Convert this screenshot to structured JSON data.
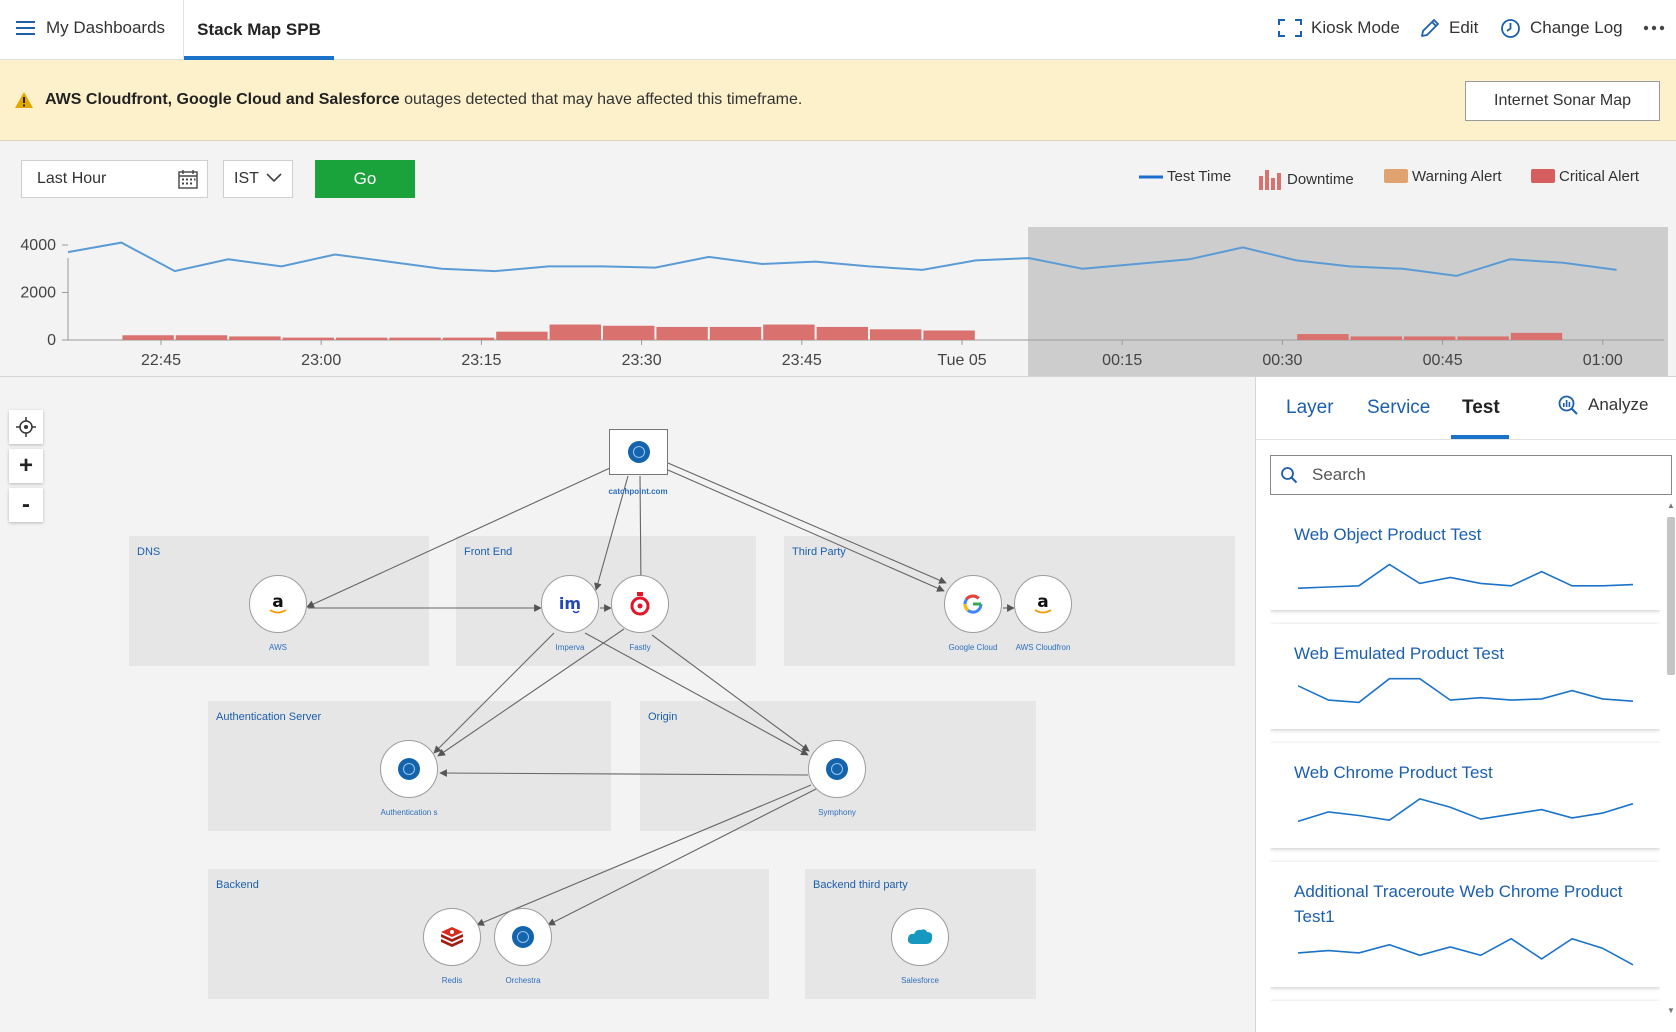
{
  "topbar": {
    "menu_label": "My Dashboards",
    "active_tab": "Stack Map SPB",
    "kiosk_label": "Kiosk Mode",
    "edit_label": "Edit",
    "changelog_label": "Change Log",
    "more_icon": "more-horizontal-icon"
  },
  "banner": {
    "bold_text": "AWS Cloudfront, Google Cloud and Salesforce",
    "text": " outages detected that may have affected this timeframe.",
    "button_label": "Internet Sonar Map",
    "icon": "warning-icon"
  },
  "controls": {
    "time_range": "Last Hour",
    "timezone": "IST",
    "go_label": "Go"
  },
  "legend": {
    "test_time": "Test Time",
    "downtime": "Downtime",
    "warning": "Warning Alert",
    "critical": "Critical Alert",
    "colors": {
      "test_time": "#1b6ed1",
      "downtime": "#d9726f",
      "warning": "#e0a36f",
      "critical": "#d65e5e"
    }
  },
  "chart_data": {
    "type": "line",
    "series": [
      {
        "values": [
          3700,
          4100,
          2900,
          3400,
          3100,
          3600,
          3300,
          3000,
          2900,
          3100,
          3100,
          3050,
          3500,
          3200,
          3300,
          3100,
          2950,
          3350,
          3450,
          3000,
          3200,
          3400,
          3900,
          3350,
          3100,
          3000,
          2700,
          3400,
          3250,
          2950
        ]
      },
      {
        "values": [
          0,
          200,
          200,
          150,
          100,
          100,
          100,
          100,
          350,
          650,
          600,
          550,
          550,
          650,
          550,
          450,
          400,
          0,
          0,
          0,
          0,
          0,
          0,
          250,
          150,
          150,
          150,
          300,
          0,
          0
        ]
      }
    ],
    "ylim": [
      0,
      4800
    ],
    "yticks": [
      "4000",
      "2000",
      "0"
    ],
    "xticks": [
      "22:45",
      "23:00",
      "23:15",
      "23:30",
      "23:45",
      "Tue 05",
      "00:15",
      "00:30",
      "00:45",
      "01:00"
    ],
    "selection": "00:00-01:00"
  },
  "map": {
    "root": {
      "label": "catchpoint.com"
    },
    "layers": [
      {
        "id": "dns",
        "label": "DNS"
      },
      {
        "id": "front",
        "label": "Front End"
      },
      {
        "id": "third",
        "label": "Third Party"
      },
      {
        "id": "auth",
        "label": "Authentication Server"
      },
      {
        "id": "origin",
        "label": "Origin"
      },
      {
        "id": "backend",
        "label": "Backend"
      },
      {
        "id": "backend3",
        "label": "Backend third party"
      }
    ],
    "nodes": {
      "aws": "AWS",
      "imperva": "Imperva",
      "fastly": "Fastly",
      "google": "Google Cloud",
      "cloudfront": "AWS Cloudfron",
      "auth": "Authentication s",
      "symphony": "Symphony",
      "redis": "Redis",
      "orchestra": "Orchestra",
      "salesforce": "Salesforce"
    },
    "zoom": {
      "in": "+",
      "out": "-"
    }
  },
  "panel": {
    "tabs": {
      "layer": "Layer",
      "service": "Service",
      "test": "Test"
    },
    "analyze_label": "Analyze",
    "search_placeholder": "Search",
    "tests": [
      {
        "title": "Web Object Product Test",
        "trend": [
          10,
          11,
          12,
          30,
          14,
          19,
          14,
          12,
          24,
          12,
          12,
          13
        ]
      },
      {
        "title": "Web Emulated Product Test",
        "trend": [
          28,
          16,
          14,
          34,
          34,
          16,
          18,
          16,
          17,
          24,
          17,
          15
        ]
      },
      {
        "title": "Web Chrome Product Test",
        "trend": [
          14,
          22,
          19,
          15,
          33,
          26,
          16,
          20,
          24,
          17,
          21,
          29
        ]
      },
      {
        "title": "Additional Traceroute Web Chrome Product Test1",
        "trend": [
          22,
          24,
          22,
          29,
          20,
          27,
          20,
          34,
          17,
          34,
          26,
          12
        ]
      }
    ]
  }
}
